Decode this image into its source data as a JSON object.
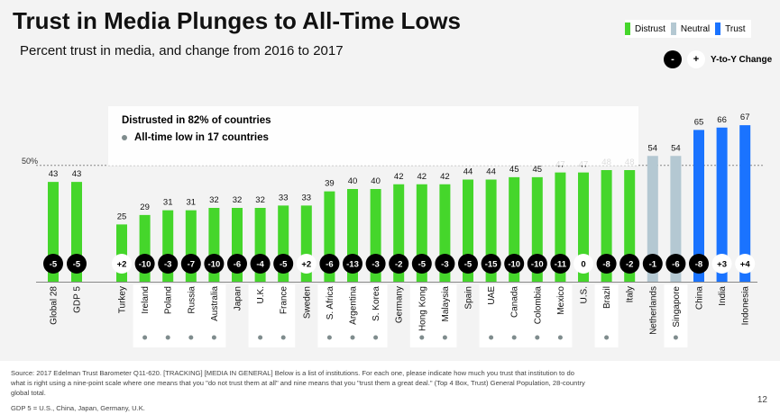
{
  "title": "Trust in Media Plunges to All-Time Lows",
  "subtitle": "Percent trust in media, and change from 2016 to 2017",
  "legend": {
    "distrust": "Distrust",
    "neutral": "Neutral",
    "trust": "Trust",
    "yoy_neg": "-",
    "yoy_pos": "+",
    "yoy_label": "Y-to-Y Change"
  },
  "colors": {
    "distrust": "#45d62b",
    "neutral": "#b4c8d2",
    "trust": "#1a73ff"
  },
  "annotation": {
    "line1": "Distrusted in 82% of countries",
    "line2": "All-time low in 17 countries"
  },
  "chart_data": {
    "type": "bar",
    "reference_line": {
      "value": 50,
      "label": "50%"
    },
    "ylim": [
      0,
      70
    ],
    "categories": [
      "Global 28",
      "GDP 5",
      "Turkey",
      "Ireland",
      "Poland",
      "Russia",
      "Australia",
      "Japan",
      "U.K.",
      "France",
      "Sweden",
      "S. Africa",
      "Argentina",
      "S. Korea",
      "Germany",
      "Hong Kong",
      "Malaysia",
      "Spain",
      "UAE",
      "Canada",
      "Colombia",
      "Mexico",
      "U.S.",
      "Brazil",
      "Italy",
      "Netherlands",
      "Singapore",
      "China",
      "India",
      "Indonesia"
    ],
    "values": [
      43,
      43,
      25,
      29,
      31,
      31,
      32,
      32,
      32,
      33,
      33,
      39,
      40,
      40,
      42,
      42,
      42,
      44,
      44,
      45,
      45,
      47,
      47,
      48,
      48,
      54,
      54,
      65,
      66,
      67
    ],
    "change_labels": [
      "-5",
      "-5",
      "+2",
      "-10",
      "-3",
      "-7",
      "-10",
      "-6",
      "-4",
      "-5",
      "+2",
      "-6",
      "-13",
      "-3",
      "-2",
      "-5",
      "-3",
      "-5",
      "-15",
      "-10",
      "-10",
      "-11",
      "0",
      "-8",
      "-2",
      "-1",
      "-6",
      "-8",
      "+3",
      "+4"
    ],
    "change": [
      -5,
      -5,
      2,
      -10,
      -3,
      -7,
      -10,
      -6,
      -4,
      -5,
      2,
      -6,
      -13,
      -3,
      -2,
      -5,
      -3,
      -5,
      -15,
      -10,
      -10,
      -11,
      0,
      -8,
      -2,
      -1,
      -6,
      -8,
      3,
      4
    ],
    "category_type": [
      "distrust",
      "distrust",
      "distrust",
      "distrust",
      "distrust",
      "distrust",
      "distrust",
      "distrust",
      "distrust",
      "distrust",
      "distrust",
      "distrust",
      "distrust",
      "distrust",
      "distrust",
      "distrust",
      "distrust",
      "distrust",
      "distrust",
      "distrust",
      "distrust",
      "distrust",
      "distrust",
      "distrust",
      "distrust",
      "neutral",
      "neutral",
      "trust",
      "trust",
      "trust"
    ],
    "all_time_low": [
      false,
      false,
      false,
      true,
      true,
      true,
      true,
      false,
      true,
      true,
      false,
      true,
      true,
      true,
      false,
      true,
      true,
      false,
      true,
      true,
      true,
      true,
      false,
      true,
      false,
      false,
      true,
      false,
      false,
      false
    ]
  },
  "footer": {
    "source": "Source: 2017 Edelman Trust Barometer Q11-620. [TRACKING] [MEDIA IN GENERAL] Below is a list of institutions. For each one, please indicate how much you trust that institution to do what is right using a nine-point scale where one means that you \"do not trust them at all\" and nine means that you \"trust them a great deal.\" (Top 4 Box, Trust) General Population, 28-country global total.",
    "gdp_note": "GDP 5 = U.S., China, Japan, Germany, U.K.",
    "page_number": "12"
  }
}
